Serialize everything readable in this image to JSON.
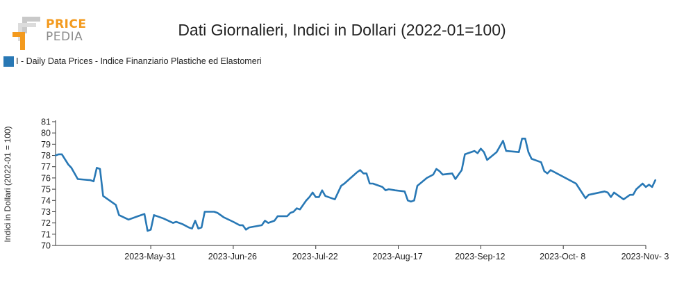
{
  "logo": {
    "word1": "PRICE",
    "word2": "PEDIA",
    "accent_color": "#f39a1e",
    "gray_color": "#b9b9b9"
  },
  "chart_data": {
    "type": "line",
    "title": "Dati Giornalieri, Indici in Dollari (2022-01=100)",
    "xlabel": "",
    "ylabel": "Indici in Dollari (2022-01 = 100)",
    "legend_placement": "top-left",
    "grid": false,
    "xlim": [
      "2023-05-01",
      "2023-11-03"
    ],
    "ylim": [
      70,
      81
    ],
    "yticks": [
      70,
      71,
      72,
      73,
      74,
      75,
      76,
      77,
      78,
      79,
      80,
      81
    ],
    "xticks": [
      "2023-05-31",
      "2023-06-26",
      "2023-07-22",
      "2023-08-17",
      "2023-09-12",
      "2023-10-08",
      "2023-11-03"
    ],
    "xtick_labels": [
      "2023-May-31",
      "2023-Jun-26",
      "2023-Jul-22",
      "2023-Aug-17",
      "2023-Sep-12",
      "2023-Oct- 8",
      "2023-Nov- 3"
    ],
    "series": [
      {
        "name": "I - Daily Data Prices - Indice Finanziario Plastiche ed Elastomeri",
        "color": "#2878b5",
        "points": [
          [
            "2023-05-01",
            78.0
          ],
          [
            "2023-05-02",
            78.1
          ],
          [
            "2023-05-03",
            78.1
          ],
          [
            "2023-05-05",
            77.2
          ],
          [
            "2023-05-06",
            76.9
          ],
          [
            "2023-05-08",
            75.9
          ],
          [
            "2023-05-12",
            75.8
          ],
          [
            "2023-05-13",
            75.7
          ],
          [
            "2023-05-14",
            76.9
          ],
          [
            "2023-05-15",
            76.8
          ],
          [
            "2023-05-16",
            74.4
          ],
          [
            "2023-05-20",
            73.6
          ],
          [
            "2023-05-21",
            72.7
          ],
          [
            "2023-05-24",
            72.3
          ],
          [
            "2023-05-27",
            72.6
          ],
          [
            "2023-05-29",
            72.8
          ],
          [
            "2023-05-30",
            71.3
          ],
          [
            "2023-05-31",
            71.4
          ],
          [
            "2023-06-01",
            72.7
          ],
          [
            "2023-06-04",
            72.4
          ],
          [
            "2023-06-07",
            72.0
          ],
          [
            "2023-06-08",
            72.1
          ],
          [
            "2023-06-10",
            71.9
          ],
          [
            "2023-06-12",
            71.6
          ],
          [
            "2023-06-13",
            71.5
          ],
          [
            "2023-06-14",
            72.2
          ],
          [
            "2023-06-15",
            71.5
          ],
          [
            "2023-06-16",
            71.6
          ],
          [
            "2023-06-17",
            73.0
          ],
          [
            "2023-06-20",
            73.0
          ],
          [
            "2023-06-21",
            72.9
          ],
          [
            "2023-06-23",
            72.5
          ],
          [
            "2023-06-26",
            72.1
          ],
          [
            "2023-06-28",
            71.8
          ],
          [
            "2023-06-29",
            71.8
          ],
          [
            "2023-06-30",
            71.4
          ],
          [
            "2023-07-01",
            71.6
          ],
          [
            "2023-07-03",
            71.7
          ],
          [
            "2023-07-05",
            71.8
          ],
          [
            "2023-07-06",
            72.2
          ],
          [
            "2023-07-07",
            72.0
          ],
          [
            "2023-07-09",
            72.2
          ],
          [
            "2023-07-10",
            72.6
          ],
          [
            "2023-07-13",
            72.6
          ],
          [
            "2023-07-14",
            72.9
          ],
          [
            "2023-07-15",
            73.0
          ],
          [
            "2023-07-16",
            73.3
          ],
          [
            "2023-07-17",
            73.2
          ],
          [
            "2023-07-19",
            74.0
          ],
          [
            "2023-07-20",
            74.3
          ],
          [
            "2023-07-21",
            74.7
          ],
          [
            "2023-07-22",
            74.3
          ],
          [
            "2023-07-23",
            74.3
          ],
          [
            "2023-07-24",
            74.9
          ],
          [
            "2023-07-25",
            74.4
          ],
          [
            "2023-07-28",
            74.1
          ],
          [
            "2023-07-30",
            75.3
          ],
          [
            "2023-07-31",
            75.5
          ],
          [
            "2023-08-02",
            76.0
          ],
          [
            "2023-08-04",
            76.5
          ],
          [
            "2023-08-05",
            76.7
          ],
          [
            "2023-08-06",
            76.4
          ],
          [
            "2023-08-07",
            76.4
          ],
          [
            "2023-08-08",
            75.5
          ],
          [
            "2023-08-09",
            75.5
          ],
          [
            "2023-08-12",
            75.2
          ],
          [
            "2023-08-13",
            74.9
          ],
          [
            "2023-08-14",
            75.0
          ],
          [
            "2023-08-16",
            74.9
          ],
          [
            "2023-08-19",
            74.8
          ],
          [
            "2023-08-20",
            74.0
          ],
          [
            "2023-08-21",
            73.9
          ],
          [
            "2023-08-22",
            74.0
          ],
          [
            "2023-08-23",
            75.3
          ],
          [
            "2023-08-26",
            76.0
          ],
          [
            "2023-08-28",
            76.3
          ],
          [
            "2023-08-29",
            76.8
          ],
          [
            "2023-08-30",
            76.6
          ],
          [
            "2023-08-31",
            76.3
          ],
          [
            "2023-09-03",
            76.4
          ],
          [
            "2023-09-04",
            75.9
          ],
          [
            "2023-09-06",
            76.7
          ],
          [
            "2023-09-07",
            78.1
          ],
          [
            "2023-09-10",
            78.4
          ],
          [
            "2023-09-11",
            78.2
          ],
          [
            "2023-09-12",
            78.6
          ],
          [
            "2023-09-13",
            78.3
          ],
          [
            "2023-09-14",
            77.6
          ],
          [
            "2023-09-17",
            78.3
          ],
          [
            "2023-09-19",
            79.3
          ],
          [
            "2023-09-20",
            78.4
          ],
          [
            "2023-09-24",
            78.3
          ],
          [
            "2023-09-25",
            79.5
          ],
          [
            "2023-09-26",
            79.5
          ],
          [
            "2023-09-27",
            78.3
          ],
          [
            "2023-09-28",
            77.7
          ],
          [
            "2023-10-01",
            77.4
          ],
          [
            "2023-10-02",
            76.6
          ],
          [
            "2023-10-03",
            76.4
          ],
          [
            "2023-10-04",
            76.7
          ],
          [
            "2023-10-12",
            75.5
          ],
          [
            "2023-10-15",
            74.2
          ],
          [
            "2023-10-16",
            74.5
          ],
          [
            "2023-10-21",
            74.8
          ],
          [
            "2023-10-22",
            74.7
          ],
          [
            "2023-10-23",
            74.3
          ],
          [
            "2023-10-24",
            74.7
          ],
          [
            "2023-10-27",
            74.1
          ],
          [
            "2023-10-29",
            74.5
          ],
          [
            "2023-10-30",
            74.5
          ],
          [
            "2023-10-31",
            75.0
          ],
          [
            "2023-11-02",
            75.5
          ],
          [
            "2023-11-03",
            75.2
          ],
          [
            "2023-11-04",
            75.4
          ],
          [
            "2023-11-05",
            75.2
          ],
          [
            "2023-11-06",
            75.8
          ]
        ]
      }
    ]
  }
}
